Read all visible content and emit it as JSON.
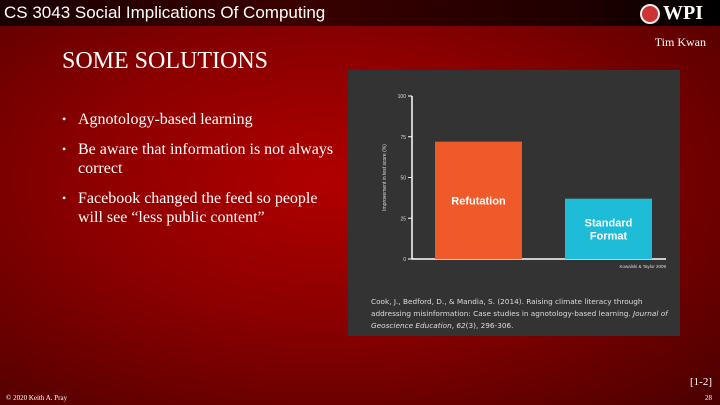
{
  "header": {
    "course_title": "CS 3043 Social Implications Of Computing",
    "logo_text": "WPI",
    "author": "Tim Kwan"
  },
  "slide": {
    "title": "SOME SOLUTIONS",
    "bullets": [
      "Agnotology-based learning",
      "Be aware that information is not always correct",
      "Facebook changed the feed so people will see “less public content”"
    ]
  },
  "figure": {
    "citation_plain1": "Cook, J., Bedford, D., & Mandia, S. (2014). Raising climate literacy through addressing misinformation: Case studies in agnotology-based learning. ",
    "citation_italic1": "Journal of Geoscience Education",
    "citation_plain2": ", ",
    "citation_italic2": "62",
    "citation_plain3": "(3), 296-306."
  },
  "chart_data": {
    "type": "bar",
    "categories": [
      "Refutation",
      "Standard Format"
    ],
    "values": [
      72,
      37
    ],
    "ylabel": "Improvement in test score (%)",
    "ylim": [
      0,
      100
    ],
    "yticks": [
      "0",
      "25",
      "50",
      "75",
      "100"
    ],
    "source": "Kowalski & Taylor 2009",
    "colors": [
      "#f05a2b",
      "#1fbcd8"
    ],
    "background": "#333333",
    "grid": false
  },
  "footer": {
    "copyright": "© 2020 Keith A. Pray",
    "page": "28",
    "ref": "[1-2]"
  }
}
